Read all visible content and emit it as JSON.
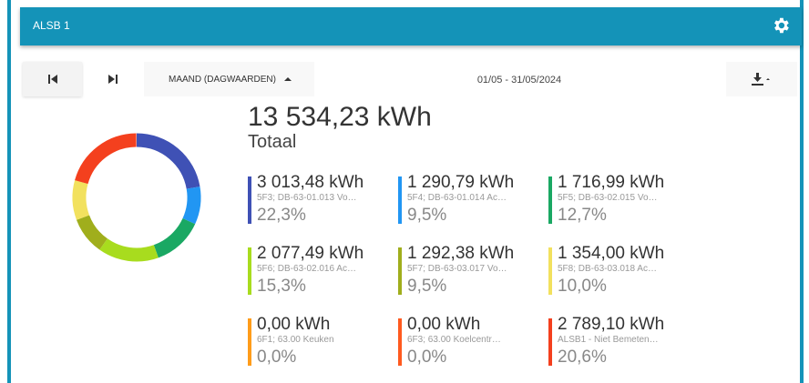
{
  "header": {
    "title": "ALSB 1"
  },
  "toolbar": {
    "period": "MAAND (DAGWAARDEN)",
    "date_range": "01/05 - 31/05/2024"
  },
  "total": {
    "value": "13 534,23 kWh",
    "label": "Totaal"
  },
  "items": [
    {
      "energy": "3 013,48 kWh",
      "name": "5F3; DB-63-01.013 Vo…",
      "percent": 22.3,
      "percent_label": "22,3%",
      "color": "#3f51b5"
    },
    {
      "energy": "1 290,79 kWh",
      "name": "5F4; DB-63-01.014 Ac…",
      "percent": 9.5,
      "percent_label": "9,5%",
      "color": "#2196f3"
    },
    {
      "energy": "1 716,99 kWh",
      "name": "5F5; DB-63-02.015 Vo…",
      "percent": 12.7,
      "percent_label": "12,7%",
      "color": "#1aa863"
    },
    {
      "energy": "2 077,49 kWh",
      "name": "5F6; DB-63-02.016 Ac…",
      "percent": 15.3,
      "percent_label": "15,3%",
      "color": "#a8dc1e"
    },
    {
      "energy": "1 292,38 kWh",
      "name": "5F7; DB-63-03.017 Vo…",
      "percent": 9.5,
      "percent_label": "9,5%",
      "color": "#a0ae1c"
    },
    {
      "energy": "1 354,00 kWh",
      "name": "5F8; DB-63-03.018 Ac…",
      "percent": 10.0,
      "percent_label": "10,0%",
      "color": "#f2e15e"
    },
    {
      "energy": "0,00 kWh",
      "name": "6F1; 63.00 Keuken",
      "percent": 0,
      "percent_label": "0,0%",
      "color": "#ff9c1a"
    },
    {
      "energy": "0,00 kWh",
      "name": "6F3; 63.00 Koelcentr…",
      "percent": 0,
      "percent_label": "0,0%",
      "color": "#ff5a1f"
    },
    {
      "energy": "2 789,10 kWh",
      "name": "ALSB1 - Niet Bemeten…",
      "percent": 20.6,
      "percent_label": "20,6%",
      "color": "#f4401e"
    }
  ]
}
